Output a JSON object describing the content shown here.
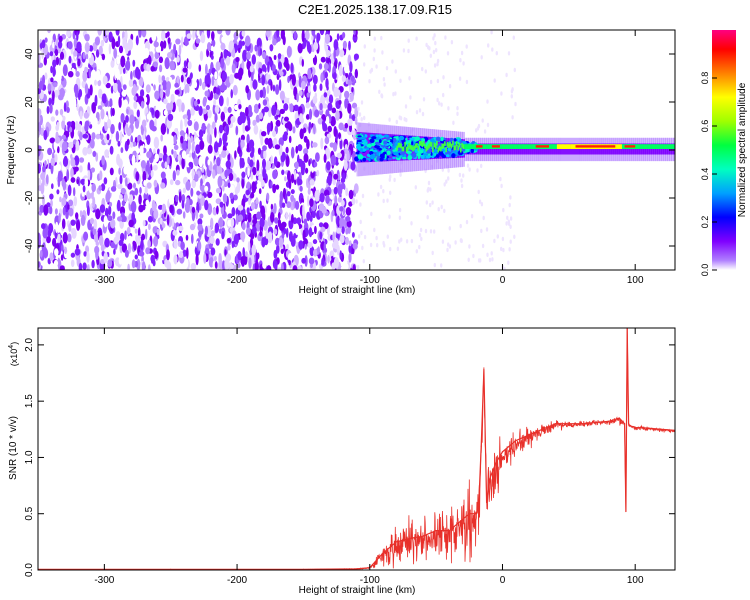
{
  "figure": {
    "title": "C2E1.2025.138.17.09.R15"
  },
  "chart_data": [
    {
      "type": "heatmap",
      "xlabel": "Height of straight line (km)",
      "ylabel": "Frequency (Hz)",
      "xlim": [
        -350,
        130
      ],
      "ylim": [
        -50,
        50
      ],
      "xticks": [
        -300,
        -200,
        -100,
        0,
        100
      ],
      "yticks": [
        -40,
        -20,
        0,
        20,
        40
      ],
      "colorbar": {
        "label": "Normalized spectral amplitude",
        "range": [
          0,
          1
        ],
        "ticks": [
          0.0,
          0.2,
          0.4,
          0.6,
          0.8
        ],
        "tick_labels": [
          "0.0",
          "0.2",
          "0.4",
          "0.6",
          "0.8"
        ],
        "colormap": [
          "#ffffff",
          "#7f00ff",
          "#0000ff",
          "#00c0ff",
          "#00ff80",
          "#80ff00",
          "#ffff00",
          "#ff8000",
          "#ff0000",
          "#ff0080"
        ]
      },
      "regions": [
        {
          "x_range": [
            -350,
            -110
          ],
          "frequency_range": [
            -50,
            50
          ],
          "amplitude_range": [
            0.0,
            0.1
          ],
          "description_color": "#7f00ff"
        },
        {
          "x_range": [
            -110,
            -30
          ],
          "frequency_range": [
            -8,
            10
          ],
          "amplitude_range": [
            0.1,
            0.6
          ]
        },
        {
          "x_range": [
            -30,
            130
          ],
          "frequency_range": [
            -2,
            4
          ],
          "amplitude_range": [
            0.4,
            0.95
          ]
        }
      ],
      "grid": false
    },
    {
      "type": "line",
      "xlabel": "Height of straight line (km)",
      "ylabel": "SNR (10 * v/v)",
      "y_multiplier_label": "(x10",
      "y_multiplier_exponent": "4",
      "y_multiplier_close": ")",
      "xlim": [
        -350,
        130
      ],
      "ylim": [
        0,
        2.15
      ],
      "xticks": [
        -300,
        -200,
        -100,
        0,
        100
      ],
      "yticks": [
        0.0,
        0.5,
        1.0,
        1.5,
        2.0
      ],
      "ytick_labels": [
        "0.0",
        "0.5",
        "1.0",
        "1.5",
        "2.0"
      ],
      "color": "#e8302a",
      "series": [
        {
          "x": [
            -350,
            -300,
            -250,
            -200,
            -150,
            -110,
            -100,
            -90,
            -80,
            -70,
            -60,
            -50,
            -40,
            -30,
            -25,
            -20,
            -18,
            -16,
            -14,
            -12,
            -10,
            -5,
            0,
            10,
            20,
            30,
            40,
            60,
            80,
            88,
            92,
            93,
            94,
            95,
            96,
            100,
            110,
            120,
            130
          ],
          "values": [
            0.005,
            0.005,
            0.005,
            0.005,
            0.005,
            0.01,
            0.02,
            0.15,
            0.25,
            0.28,
            0.3,
            0.35,
            0.35,
            0.45,
            0.5,
            0.5,
            0.55,
            1.1,
            1.78,
            0.6,
            0.8,
            0.95,
            1.05,
            1.15,
            1.2,
            1.25,
            1.3,
            1.3,
            1.32,
            1.35,
            1.3,
            0.52,
            2.15,
            1.3,
            1.28,
            1.27,
            1.26,
            1.25,
            1.24
          ],
          "noise_amplitude": [
            0,
            0,
            0,
            0,
            0,
            0.005,
            0.01,
            0.12,
            0.2,
            0.22,
            0.2,
            0.22,
            0.25,
            0.3,
            0.35,
            0.3,
            0.3,
            0.3,
            0.1,
            0.25,
            0.3,
            0.25,
            0.2,
            0.15,
            0.1,
            0.06,
            0.05,
            0.03,
            0.03,
            0.05,
            0.03,
            0,
            0,
            0.03,
            0.02,
            0.02,
            0.02,
            0.02,
            0.02
          ]
        }
      ],
      "grid": false
    }
  ]
}
